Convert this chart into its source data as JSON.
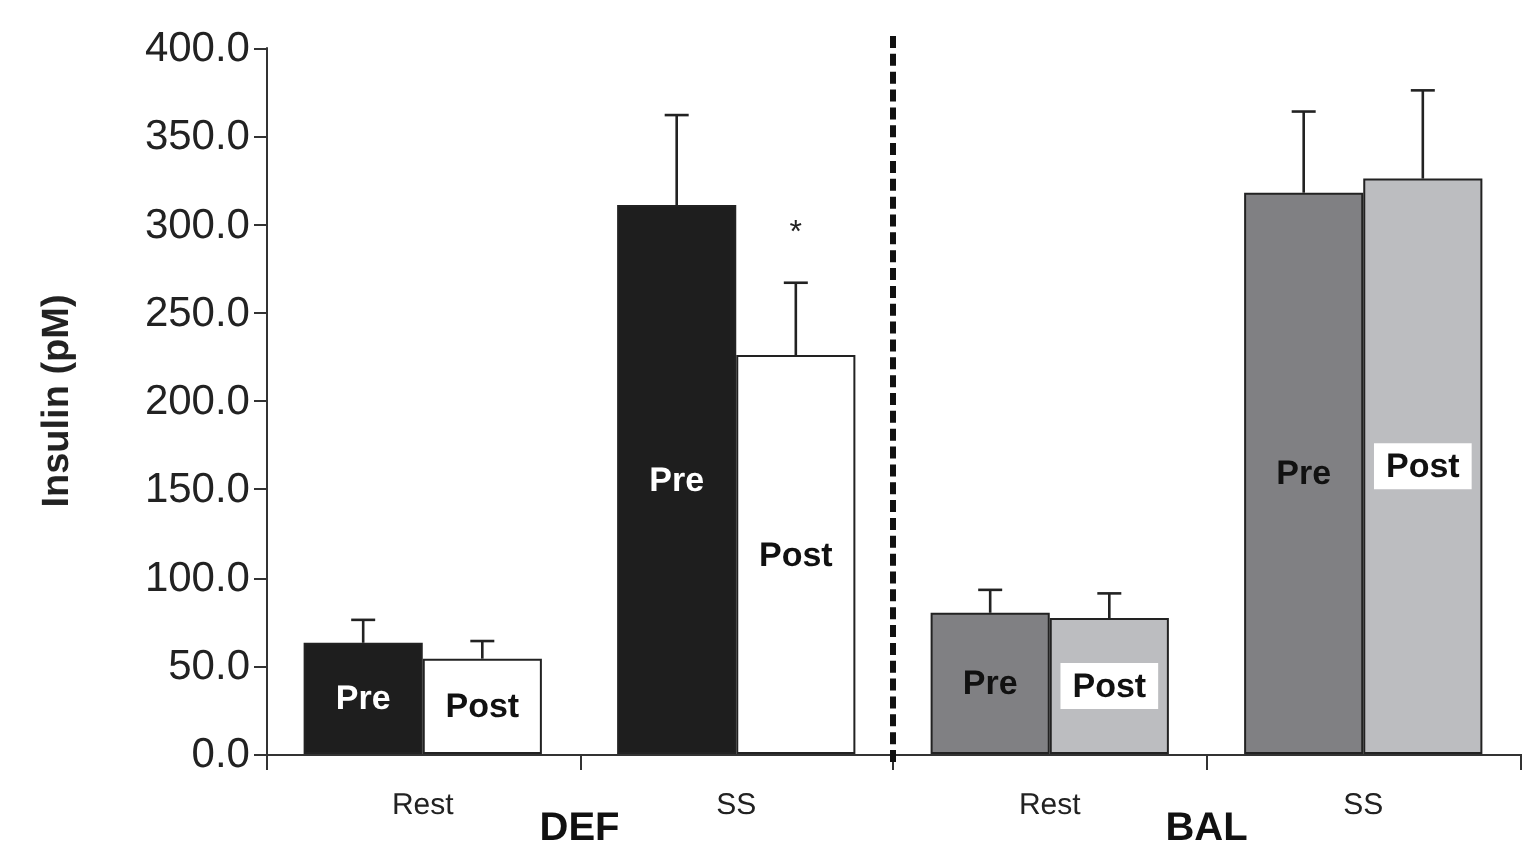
{
  "chart_data": {
    "type": "bar",
    "ylabel": "Insulin (pM)",
    "categories": [
      "Rest",
      "SS",
      "Rest",
      "SS"
    ],
    "series": [
      {
        "name": "Pre",
        "colors": [
          "#1e1e1e",
          "#1e1e1e",
          "#808083",
          "#808083"
        ],
        "values": [
          63,
          311,
          80,
          318
        ],
        "errors": [
          13,
          51,
          13,
          46
        ]
      },
      {
        "name": "Post",
        "colors": [
          "#ffffff",
          "#ffffff",
          "#bcbdc0",
          "#bcbdc0"
        ],
        "values": [
          54,
          226,
          77,
          326
        ],
        "errors": [
          10,
          41,
          14,
          50
        ]
      }
    ],
    "ylim": [
      0,
      400
    ],
    "yticks": [
      {
        "value": 0,
        "label": "0.0"
      },
      {
        "value": 50,
        "label": "50.0"
      },
      {
        "value": 100,
        "label": "100.0"
      },
      {
        "value": 150,
        "label": "150.0"
      },
      {
        "value": 200,
        "label": "200.0"
      },
      {
        "value": 250,
        "label": "250.0"
      },
      {
        "value": 300,
        "label": "300.0"
      },
      {
        "value": 350,
        "label": "350.0"
      },
      {
        "value": 400,
        "label": "400.0"
      }
    ],
    "annotations": [
      "DEF",
      "BAL",
      {
        "text": "*",
        "x": "SS",
        "y": 295
      }
    ],
    "grid": false,
    "legend": false
  }
}
